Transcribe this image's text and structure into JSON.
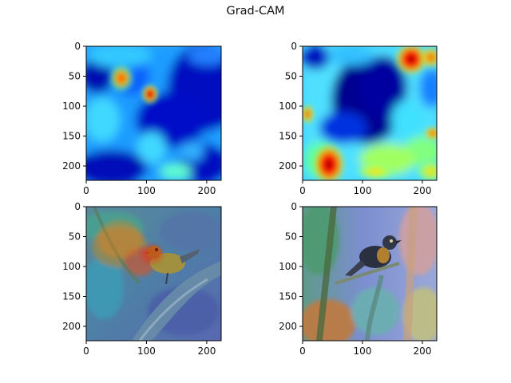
{
  "figure": {
    "title": "Grad-CAM"
  },
  "chart_data": [
    {
      "type": "heatmap",
      "panel": "gradcam-heatmap-1",
      "colormap": "jet",
      "xlim": [
        0,
        224
      ],
      "ylim": [
        224,
        0
      ],
      "xticks": [
        0,
        100,
        200
      ],
      "yticks": [
        0,
        50,
        100,
        150,
        200
      ],
      "hotspots": [
        {
          "x": 55,
          "y": 55,
          "value": 0.85
        },
        {
          "x": 110,
          "y": 82,
          "value": 1.0
        }
      ]
    },
    {
      "type": "heatmap",
      "panel": "gradcam-heatmap-2",
      "colormap": "jet",
      "xlim": [
        0,
        224
      ],
      "ylim": [
        224,
        0
      ],
      "xticks": [
        0,
        100,
        200
      ],
      "yticks": [
        0,
        50,
        100,
        150,
        200
      ],
      "hotspots": [
        {
          "x": 180,
          "y": 15,
          "value": 1.0
        },
        {
          "x": 45,
          "y": 200,
          "value": 1.0
        },
        {
          "x": 10,
          "y": 115,
          "value": 0.8
        },
        {
          "x": 215,
          "y": 145,
          "value": 0.75
        }
      ]
    },
    {
      "type": "heatmap",
      "panel": "gradcam-overlay-1",
      "colormap": "jet",
      "overlay": "bird-photo",
      "xlim": [
        0,
        224
      ],
      "ylim": [
        224,
        0
      ],
      "xticks": [
        0,
        100,
        200
      ],
      "yticks": [
        0,
        50,
        100,
        150,
        200
      ]
    },
    {
      "type": "heatmap",
      "panel": "gradcam-overlay-2",
      "colormap": "jet",
      "overlay": "bird-photo",
      "xlim": [
        0,
        224
      ],
      "ylim": [
        224,
        0
      ],
      "xticks": [
        0,
        100,
        200
      ],
      "yticks": [
        0,
        50,
        100,
        150,
        200
      ]
    }
  ]
}
